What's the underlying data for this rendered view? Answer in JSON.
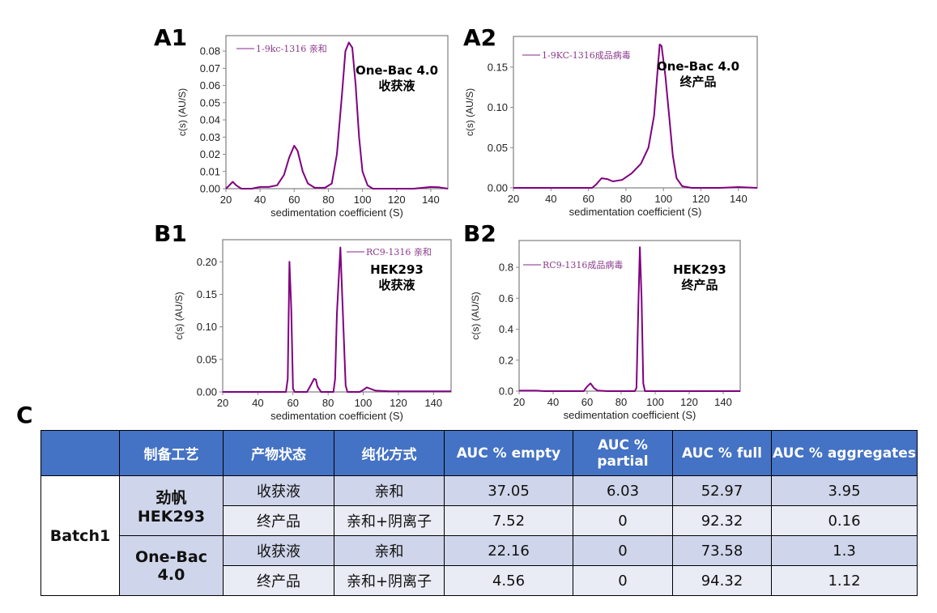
{
  "colors": {
    "line": "#800080",
    "legend_text": "#8B3A8B",
    "header": "#4472C4",
    "row_dark": "#CFD5EA",
    "row_light": "#E9EBF5"
  },
  "panel_c_label": "C",
  "chart_data": [
    {
      "id": "A1",
      "type": "line",
      "panel_label": "A1",
      "xlabel": "sedimentation coefficient (S)",
      "ylabel": "c(s) (AU/S)",
      "xlim": [
        20,
        150
      ],
      "ylim": [
        0,
        0.089
      ],
      "xticks": [
        "20",
        "40",
        "60",
        "80",
        "100",
        "120",
        "140"
      ],
      "yticks": [
        "0.00",
        "0.01",
        "0.02",
        "0.03",
        "0.04",
        "0.05",
        "0.06",
        "0.07",
        "0.08"
      ],
      "legend": "1-9kc-1316 亲和",
      "annotation": [
        "One-Bac 4.0",
        "收获液"
      ],
      "series": [
        {
          "name": "1-9kc-1316 亲和",
          "points": [
            [
              20,
              0
            ],
            [
              22,
              0.002
            ],
            [
              24,
              0.004
            ],
            [
              26,
              0.002
            ],
            [
              29,
              0
            ],
            [
              35,
              0
            ],
            [
              40,
              0.001
            ],
            [
              45,
              0.001
            ],
            [
              50,
              0.002
            ],
            [
              54,
              0.008
            ],
            [
              57,
              0.018
            ],
            [
              60,
              0.025
            ],
            [
              62,
              0.022
            ],
            [
              65,
              0.01
            ],
            [
              68,
              0.003
            ],
            [
              72,
              0.0005
            ],
            [
              78,
              0.0005
            ],
            [
              82,
              0.003
            ],
            [
              85,
              0.02
            ],
            [
              88,
              0.055
            ],
            [
              90,
              0.08
            ],
            [
              92,
              0.085
            ],
            [
              94,
              0.082
            ],
            [
              96,
              0.06
            ],
            [
              98,
              0.03
            ],
            [
              100,
              0.01
            ],
            [
              103,
              0.002
            ],
            [
              106,
              0
            ],
            [
              130,
              0
            ],
            [
              140,
              0.001
            ],
            [
              145,
              0.0008
            ],
            [
              150,
              0
            ]
          ]
        }
      ]
    },
    {
      "id": "A2",
      "type": "line",
      "panel_label": "A2",
      "xlabel": "sedimentation coefficient (S)",
      "ylabel": "c(s) (AU/S)",
      "xlim": [
        20,
        150
      ],
      "ylim": [
        0,
        0.188
      ],
      "xticks": [
        "20",
        "40",
        "60",
        "80",
        "100",
        "120",
        "140"
      ],
      "yticks": [
        "0.00",
        "0.05",
        "0.10",
        "0.15"
      ],
      "legend": "1-9KC-1316成品病毒",
      "annotation": [
        "One-Bac 4.0",
        "终产品"
      ],
      "series": [
        {
          "name": "1-9KC-1316成品病毒",
          "points": [
            [
              20,
              0
            ],
            [
              62,
              0
            ],
            [
              64,
              0.004
            ],
            [
              67,
              0.012
            ],
            [
              70,
              0.011
            ],
            [
              73,
              0.008
            ],
            [
              78,
              0.01
            ],
            [
              83,
              0.018
            ],
            [
              88,
              0.03
            ],
            [
              92,
              0.05
            ],
            [
              95,
              0.09
            ],
            [
              97,
              0.15
            ],
            [
              98,
              0.178
            ],
            [
              99,
              0.176
            ],
            [
              101,
              0.14
            ],
            [
              103,
              0.09
            ],
            [
              105,
              0.04
            ],
            [
              107,
              0.012
            ],
            [
              110,
              0.002
            ],
            [
              115,
              0
            ],
            [
              130,
              0
            ],
            [
              140,
              0.001
            ],
            [
              150,
              0
            ]
          ]
        }
      ]
    },
    {
      "id": "B1",
      "type": "line",
      "panel_label": "B1",
      "xlabel": "sedimentation coefficient (S)",
      "ylabel": "c(s) (AU/S)",
      "xlim": [
        20,
        150
      ],
      "ylim": [
        0,
        0.234
      ],
      "xticks": [
        "20",
        "40",
        "60",
        "80",
        "100",
        "120",
        "140"
      ],
      "yticks": [
        "0.00",
        "0.05",
        "0.10",
        "0.15",
        "0.20"
      ],
      "legend": "RC9-1316 亲和",
      "annotation": [
        "HEK293",
        "收获液"
      ],
      "series": [
        {
          "name": "RC9-1316 亲和",
          "points": [
            [
              20,
              0
            ],
            [
              56,
              0
            ],
            [
              57,
              0.02
            ],
            [
              58,
              0.2
            ],
            [
              59,
              0.13
            ],
            [
              60,
              0.005
            ],
            [
              61,
              0
            ],
            [
              68,
              0
            ],
            [
              70,
              0.01
            ],
            [
              72,
              0.02
            ],
            [
              73,
              0.019
            ],
            [
              74,
              0.008
            ],
            [
              76,
              0
            ],
            [
              83,
              0
            ],
            [
              84,
              0.02
            ],
            [
              85,
              0.12
            ],
            [
              87,
              0.222
            ],
            [
              88,
              0.15
            ],
            [
              90,
              0.01
            ],
            [
              91,
              0
            ],
            [
              98,
              0
            ],
            [
              100,
              0.003
            ],
            [
              102,
              0.007
            ],
            [
              104,
              0.005
            ],
            [
              107,
              0.002
            ],
            [
              115,
              0.001
            ],
            [
              150,
              0.001
            ]
          ]
        }
      ]
    },
    {
      "id": "B2",
      "type": "line",
      "panel_label": "B2",
      "xlabel": "sedimentation coefficient (S)",
      "ylabel": "c(s) (AU/S)",
      "xlim": [
        20,
        150
      ],
      "ylim": [
        0,
        0.973
      ],
      "xticks": [
        "20",
        "40",
        "60",
        "80",
        "100",
        "120",
        "140"
      ],
      "yticks": [
        "0.0",
        "0.2",
        "0.4",
        "0.6",
        "0.8"
      ],
      "legend": "RC9-1316成品病毒",
      "annotation": [
        "HEK293",
        "终产品"
      ],
      "series": [
        {
          "name": "RC9-1316成品病毒",
          "points": [
            [
              20,
              0.003
            ],
            [
              30,
              0.003
            ],
            [
              35,
              0
            ],
            [
              58,
              0
            ],
            [
              60,
              0.03
            ],
            [
              62,
              0.05
            ],
            [
              64,
              0.02
            ],
            [
              66,
              0.004
            ],
            [
              72,
              0
            ],
            [
              88,
              0
            ],
            [
              89,
              0.02
            ],
            [
              90,
              0.5
            ],
            [
              91,
              0.93
            ],
            [
              92,
              0.6
            ],
            [
              93,
              0.05
            ],
            [
              94,
              0
            ],
            [
              150,
              0
            ]
          ]
        }
      ]
    }
  ],
  "table": {
    "headers": [
      "",
      "制备工艺",
      "产物状态",
      "纯化方式",
      "AUC % empty",
      "AUC % partial",
      "AUC % full",
      "AUC % aggregates"
    ],
    "batch": "Batch1",
    "groups": [
      {
        "process": "劲帆 HEK293",
        "rows": [
          {
            "state": "收获液",
            "purification": "亲和",
            "empty": "37.05",
            "partial": "6.03",
            "full": "52.97",
            "aggregates": "3.95"
          },
          {
            "state": "终产品",
            "purification": "亲和+阴离子",
            "empty": "7.52",
            "partial": "0",
            "full": "92.32",
            "aggregates": "0.16"
          }
        ]
      },
      {
        "process": "One-Bac 4.0",
        "rows": [
          {
            "state": "收获液",
            "purification": "亲和",
            "empty": "22.16",
            "partial": "0",
            "full": "73.58",
            "aggregates": "1.3"
          },
          {
            "state": "终产品",
            "purification": "亲和+阴离子",
            "empty": "4.56",
            "partial": "0",
            "full": "94.32",
            "aggregates": "1.12"
          }
        ]
      }
    ]
  }
}
